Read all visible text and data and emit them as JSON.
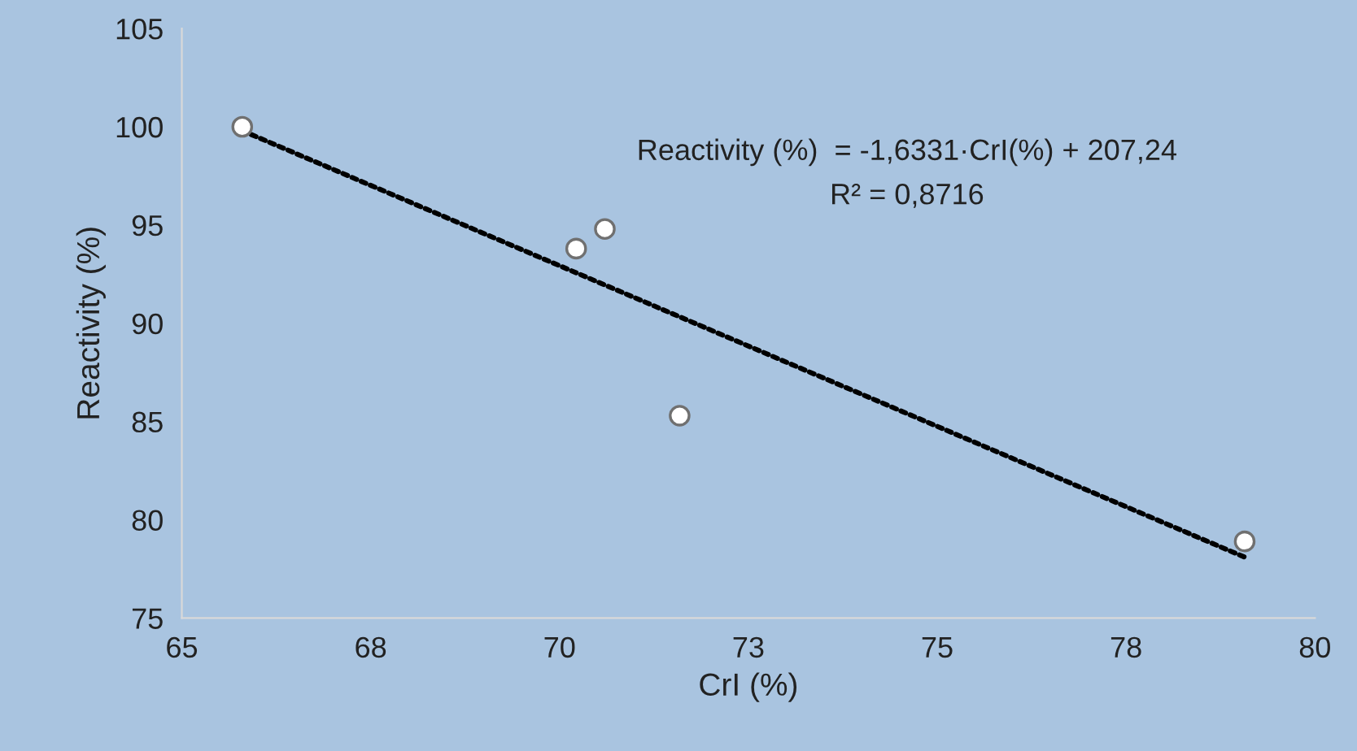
{
  "chart_data": {
    "type": "scatter",
    "xlabel": "CrI (%)",
    "ylabel": "Reactivity (%)",
    "x": [
      65.8,
      70.22,
      70.6,
      71.59,
      79.07
    ],
    "series": [
      {
        "color": "#ffffff",
        "values": [
          100,
          93.8,
          94.8,
          85.3,
          78.9
        ],
        "marker": "circle"
      },
      {
        "type": "line",
        "color": "#000000",
        "x": [
          65.8,
          79.07
        ],
        "values": [
          99.8,
          78.1
        ],
        "line_style": "dotted",
        "marker": "none"
      }
    ],
    "xlim": [
      65,
      80
    ],
    "xticks": [
      65,
      {
        "value": 67.5,
        "label": "68"
      },
      70,
      {
        "value": 72.5,
        "label": "73"
      },
      75,
      {
        "value": 77.5,
        "label": "78"
      },
      80
    ],
    "ylim": [
      75,
      105
    ],
    "yticks": [
      75,
      80,
      85,
      90,
      95,
      100,
      105
    ],
    "annotations": [
      "Reactivity (%)  = -1,6331·CrI(%) + 207,24",
      "R² = 0,8716"
    ],
    "grid": false,
    "legend": false
  }
}
